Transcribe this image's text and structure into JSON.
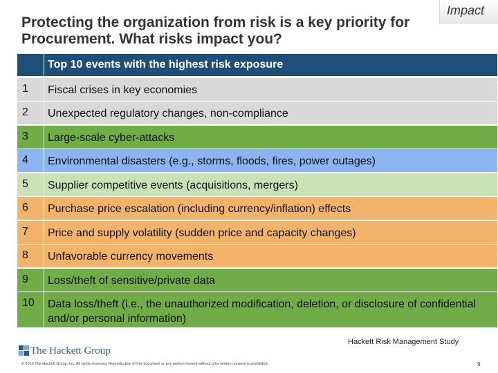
{
  "title": "Protecting the organization from risk is a key priority for Procurement.  What risks impact you?",
  "impact_tab": "Impact",
  "table": {
    "header": "Top 10 events with the highest risk exposure",
    "rows": [
      {
        "num": "1",
        "text": "Fiscal crises in key economies",
        "color": "#d9d9d9"
      },
      {
        "num": "2",
        "text": "Unexpected regulatory changes, non-compliance",
        "color": "#d9d9d9"
      },
      {
        "num": "3",
        "text": "Large-scale cyber-attacks",
        "color": "#70ad47"
      },
      {
        "num": "4",
        "text": "Environmental disasters (e.g., storms, floods, fires, power outages)",
        "color": "#8cb4f0"
      },
      {
        "num": "5",
        "text": "Supplier competitive events (acquisitions, mergers)",
        "color": "#c9e3b6"
      },
      {
        "num": "6",
        "text": "Purchase price escalation (including currency/inflation) effects",
        "color": "#f4b36b"
      },
      {
        "num": "7",
        "text": "Price and supply volatility (sudden price and capacity changes)",
        "color": "#f4b36b"
      },
      {
        "num": "8",
        "text": "Unfavorable currency movements",
        "color": "#f4b36b"
      },
      {
        "num": "9",
        "text": "Loss/theft of sensitive/private data",
        "color": "#70ad47"
      },
      {
        "num": "10",
        "text": "Data loss/theft (i.e., the unauthorized modification, deletion, or disclosure of confidential and/or personal information)",
        "color": "#70ad47"
      }
    ]
  },
  "footer": {
    "study": "Hackett Risk Management Study",
    "logo": "The Hackett Group",
    "copyright": "© 2015 The Hackett Group, Inc. All rights reserved. Reproduction of this document or any portion thereof without prior written consent is prohibited.",
    "page": "9"
  }
}
